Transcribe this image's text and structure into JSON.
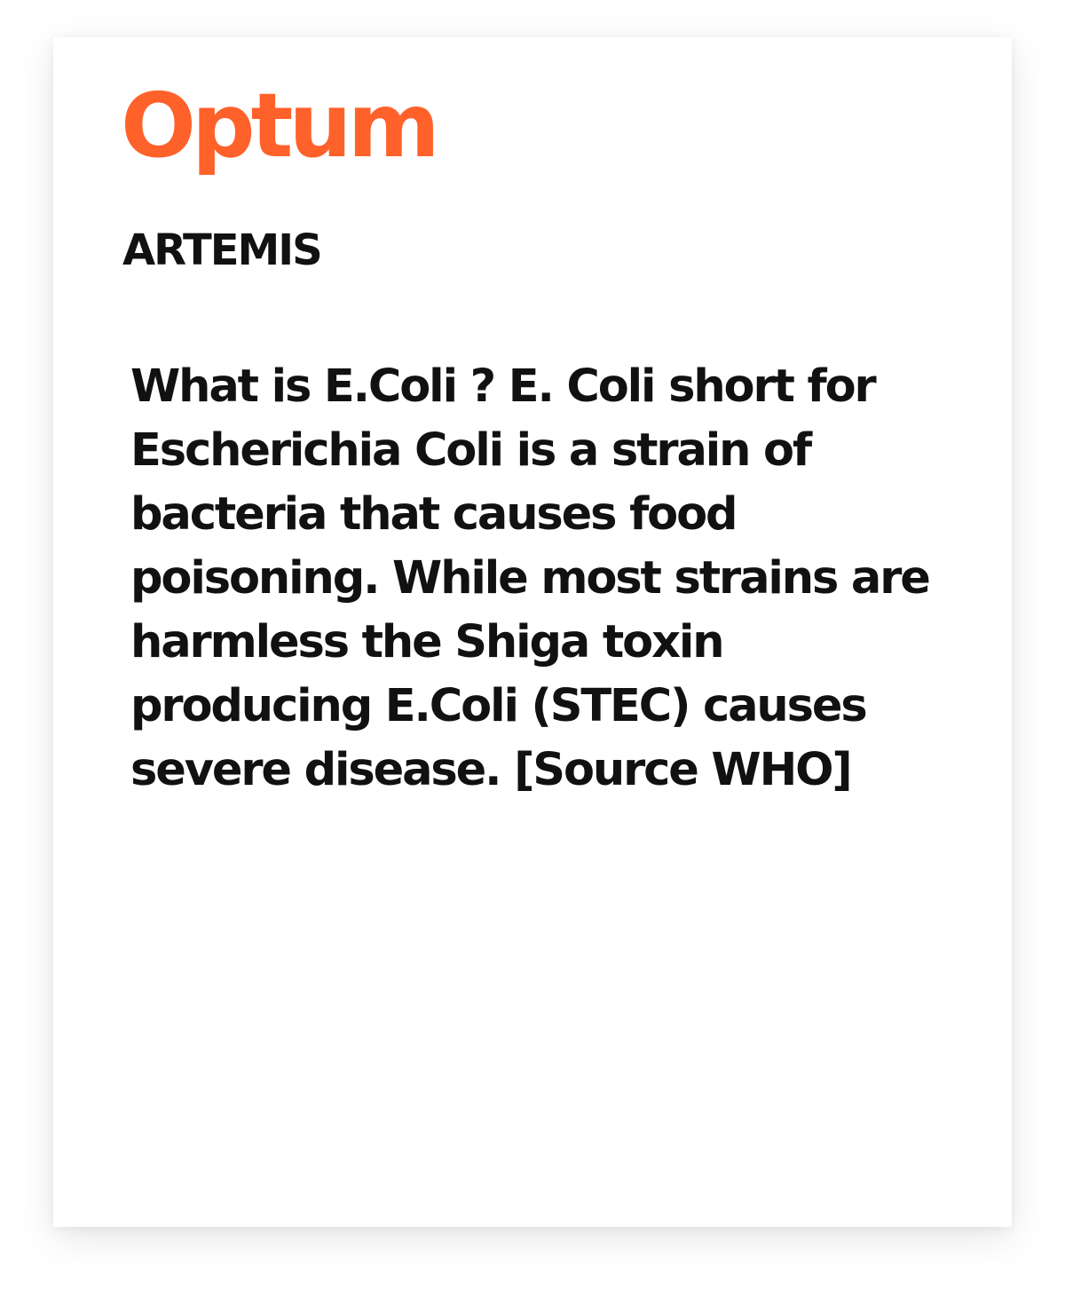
{
  "brand": {
    "name": "Optum",
    "color": "#ff612b"
  },
  "product": {
    "name": "ARTEMIS"
  },
  "content": {
    "lines": [
      "What is E.Coli ?  E. Coli short for",
      "Escherichia Coli is a strain of",
      "bacteria that causes food",
      "poisoning. While most strains are",
      "harmless the Shiga toxin",
      "producing E.Coli (STEC) causes",
      "severe disease. [Source WHO]"
    ]
  }
}
